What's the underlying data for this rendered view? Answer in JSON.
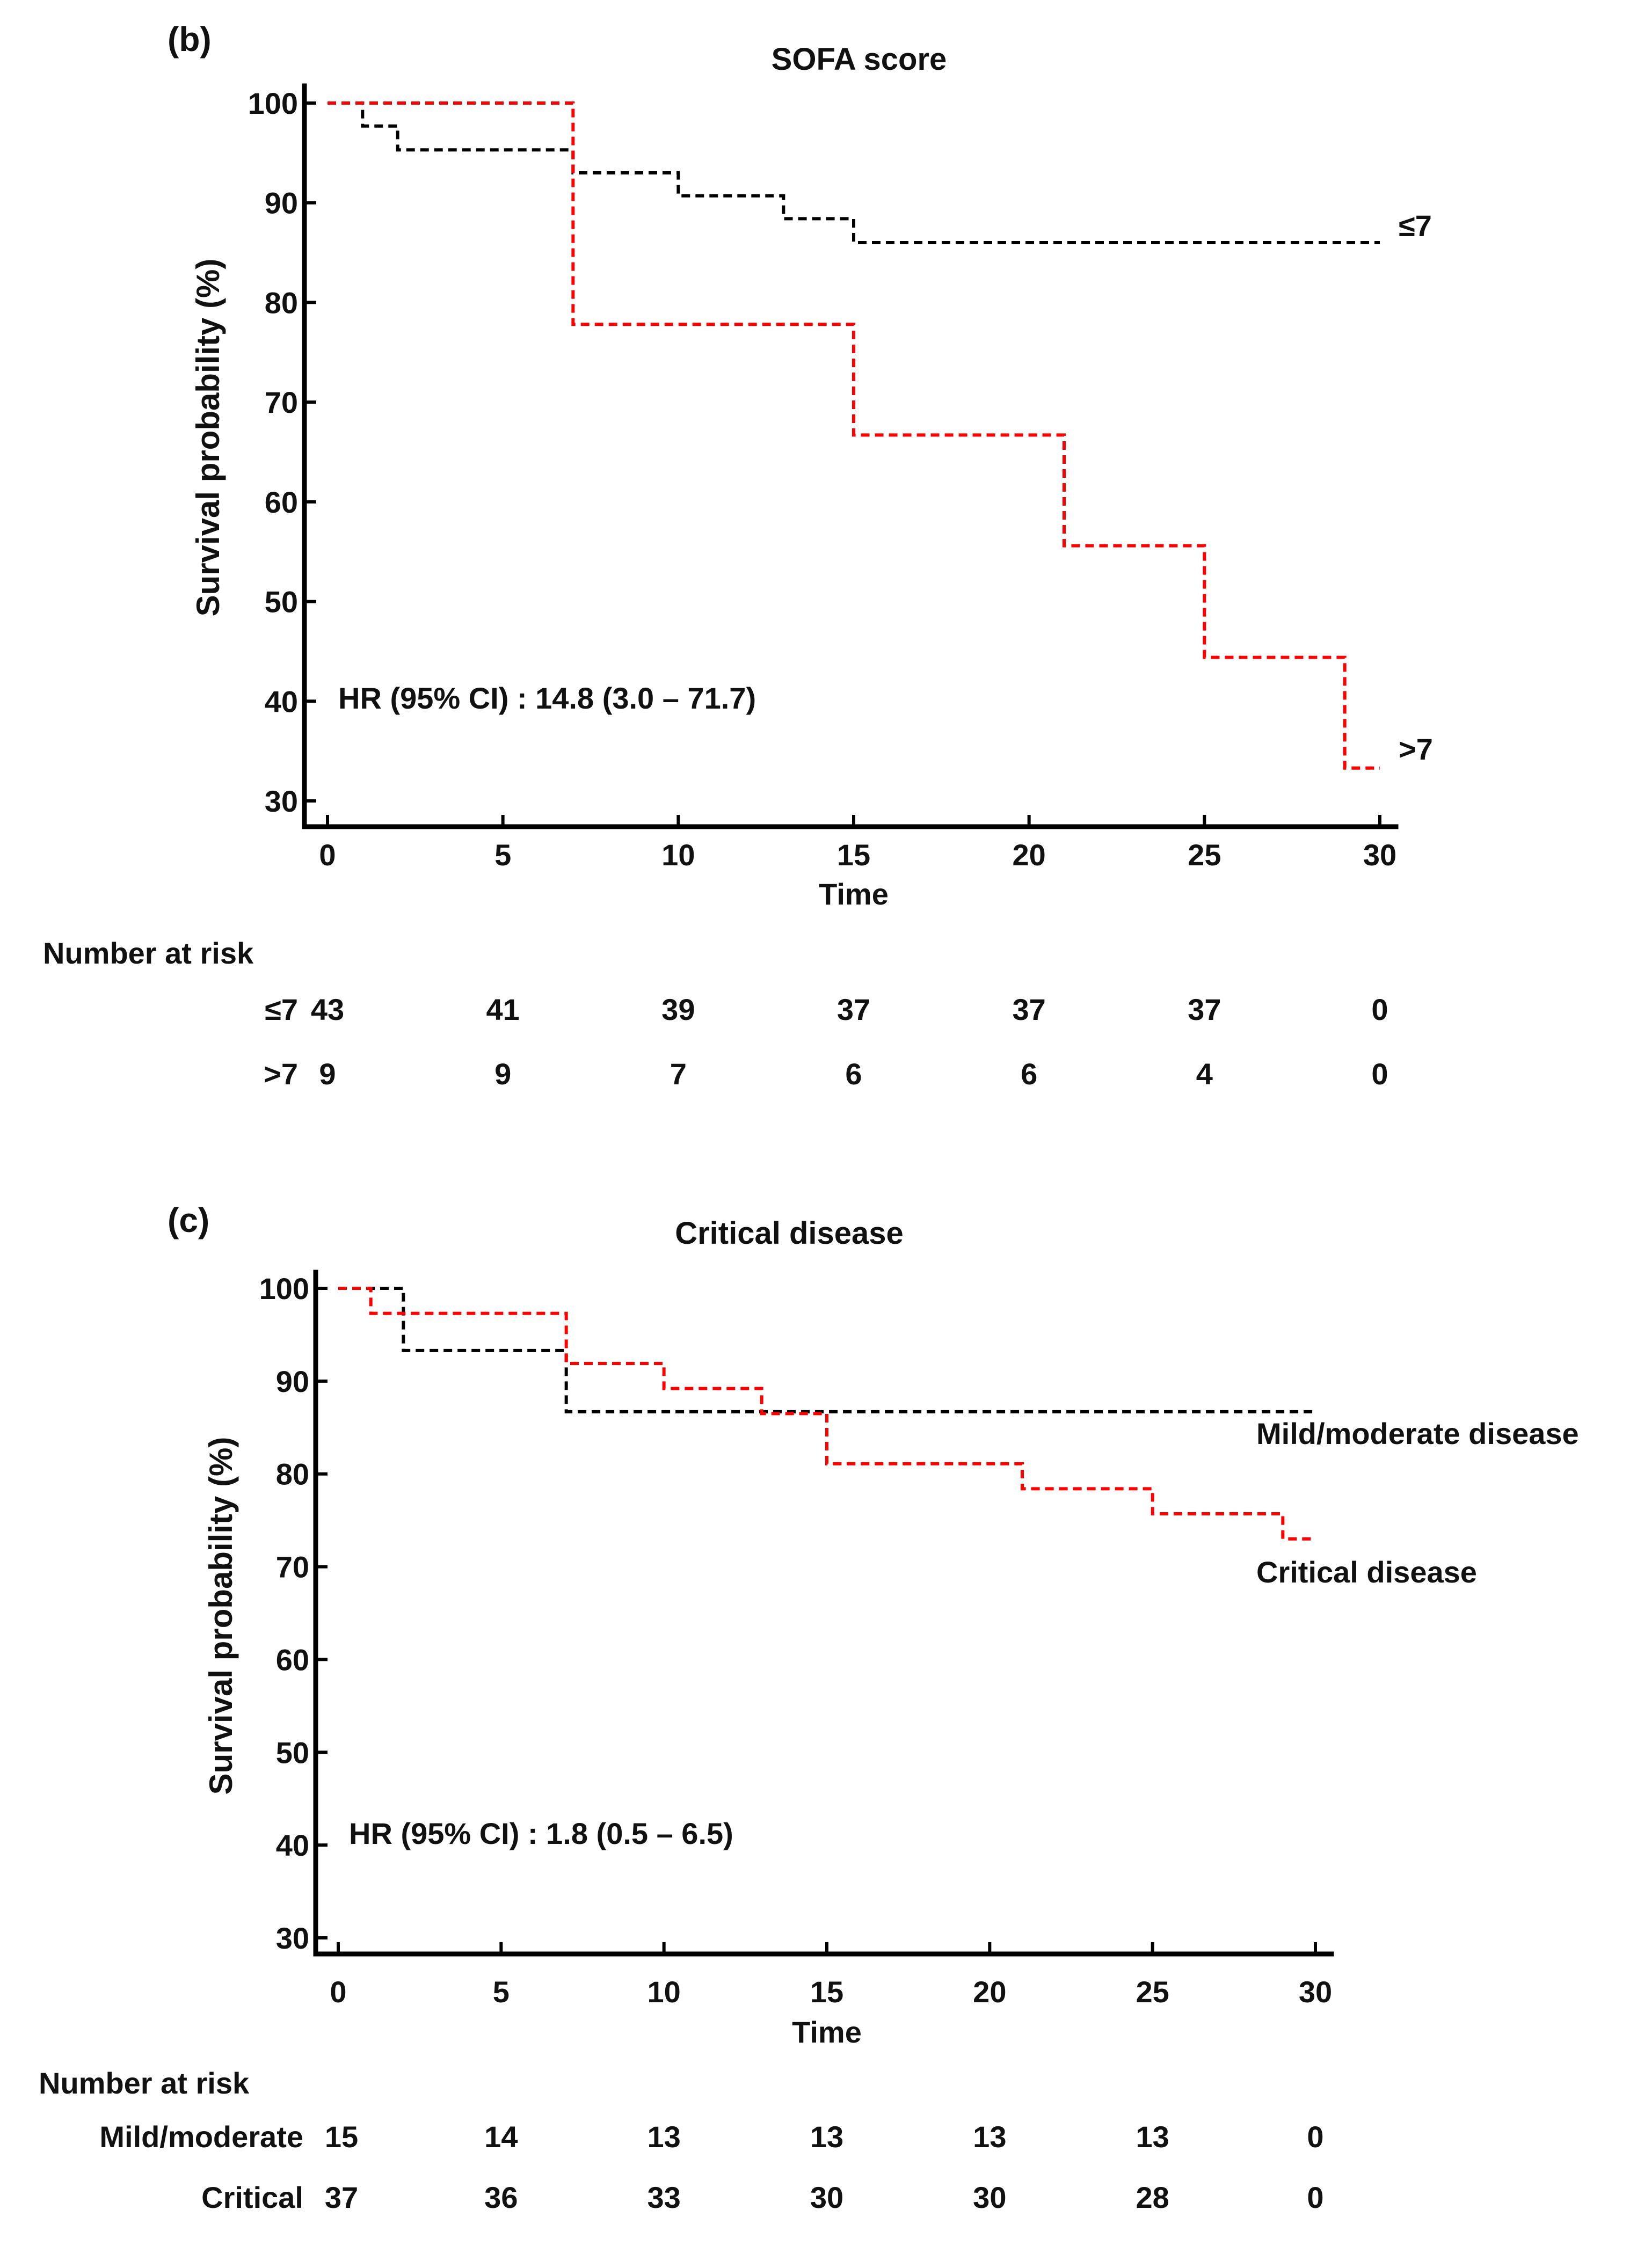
{
  "chart_data": [
    {
      "type": "line",
      "panel_label": "(b)",
      "title": "SOFA score",
      "xlabel": "Time",
      "ylabel": "Survival probability (%)",
      "xlim": [
        0,
        30
      ],
      "ylim": [
        30,
        100
      ],
      "x_ticks": [
        "0",
        "5",
        "10",
        "15",
        "20",
        "25",
        "30"
      ],
      "y_ticks": [
        "100",
        "90",
        "80",
        "70",
        "60",
        "50",
        "40",
        "30"
      ],
      "annotation": "HR (95% CI) : 14.8 (3.0 – 71.7)",
      "series": [
        {
          "name": "≤7",
          "color": "#000000",
          "steps": [
            [
              0,
              100
            ],
            [
              1,
              97.7
            ],
            [
              2,
              95.3
            ],
            [
              7,
              93.0
            ],
            [
              10,
              90.7
            ],
            [
              13,
              88.4
            ],
            [
              15,
              86.0
            ],
            [
              30,
              86.0
            ]
          ]
        },
        {
          "name": ">7",
          "color": "#ff0000",
          "steps": [
            [
              0,
              100
            ],
            [
              7,
              77.8
            ],
            [
              15,
              66.7
            ],
            [
              21,
              55.6
            ],
            [
              25,
              44.4
            ],
            [
              29,
              33.3
            ],
            [
              30,
              33.3
            ]
          ]
        }
      ],
      "risk_table": {
        "title": "Number at risk",
        "times": [
          0,
          5,
          10,
          15,
          20,
          25,
          30
        ],
        "rows": [
          {
            "label": "≤7",
            "values": [
              "43",
              "41",
              "39",
              "37",
              "37",
              "37",
              "0"
            ]
          },
          {
            "label": ">7",
            "values": [
              "9",
              "9",
              "7",
              "6",
              "6",
              "4",
              "0"
            ]
          }
        ]
      }
    },
    {
      "type": "line",
      "panel_label": "(c)",
      "title": "Critical disease",
      "xlabel": "Time",
      "ylabel": "Survival probability (%)",
      "xlim": [
        0,
        30
      ],
      "ylim": [
        30,
        100
      ],
      "x_ticks": [
        "0",
        "5",
        "10",
        "15",
        "20",
        "25",
        "30"
      ],
      "y_ticks": [
        "100",
        "90",
        "80",
        "70",
        "60",
        "50",
        "40",
        "30"
      ],
      "annotation": "HR (95% CI) : 1.8 (0.5 – 6.5)",
      "series": [
        {
          "name": "Mild/moderate disease",
          "color": "#000000",
          "steps": [
            [
              0,
              100
            ],
            [
              2,
              93.3
            ],
            [
              7,
              86.7
            ],
            [
              30,
              86.7
            ]
          ]
        },
        {
          "name": "Critical disease",
          "color": "#ff0000",
          "steps": [
            [
              0,
              100
            ],
            [
              1,
              97.3
            ],
            [
              7,
              91.9
            ],
            [
              10,
              89.2
            ],
            [
              13,
              86.5
            ],
            [
              15,
              81.1
            ],
            [
              21,
              78.4
            ],
            [
              25,
              75.7
            ],
            [
              29,
              73.0
            ],
            [
              30,
              73.0
            ]
          ]
        }
      ],
      "risk_table": {
        "title": "Number at risk",
        "times": [
          0,
          5,
          10,
          15,
          20,
          25,
          30
        ],
        "rows": [
          {
            "label": "Mild/moderate",
            "values": [
              "15",
              "14",
              "13",
              "13",
              "13",
              "13",
              "0"
            ]
          },
          {
            "label": "Critical",
            "values": [
              "37",
              "36",
              "33",
              "30",
              "30",
              "28",
              "0"
            ]
          }
        ]
      }
    }
  ]
}
